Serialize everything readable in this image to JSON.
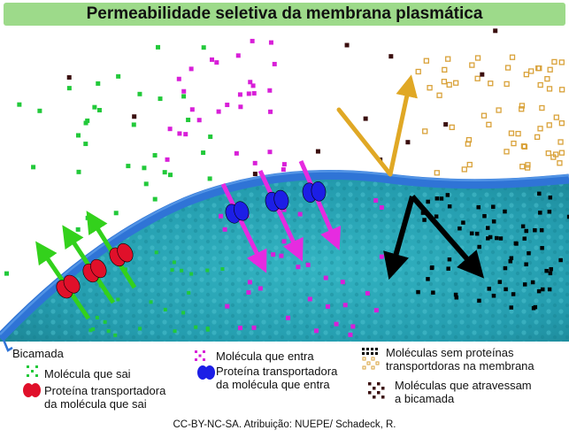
{
  "title": "Permeabilidade seletiva da membrana plasmática",
  "colors": {
    "title_bg": "#9dda8a",
    "membrane": "#2f74d6",
    "cell": "#2aa7b7",
    "outgoing_molecule": "#22c93a",
    "outgoing_protein": "#e0102a",
    "incoming_molecule": "#d81fd8",
    "incoming_protein": "#1c1ee6",
    "no_protein_molecule": "#d9a23a",
    "bilayer_molecule": "#3a0e0e",
    "arrow_out": "#33d11c",
    "arrow_in": "#e62be0",
    "arrow_reflect": "#e0a825",
    "arrow_black": "#000000"
  },
  "legend": {
    "bilayer": "Bicamada",
    "outgoing_molecule": "Molécula que sai",
    "outgoing_protein_line1": "Proteína transportadora",
    "outgoing_protein_line2": "da molécula que sai",
    "incoming_molecule": "Molécula que entra",
    "incoming_protein_line1": "Proteína transportadora",
    "incoming_protein_line2": "da molécula que entra",
    "no_protein_line1": "Moléculas sem proteínas",
    "no_protein_line2": "transportdoras na membrana",
    "bilayer_molecules_line1": "Moléculas que atravessam",
    "bilayer_molecules_line2": "a bicamada"
  },
  "credit": "CC-BY-NC-SA. Atribuição: NUEPE/ Schadeck, R."
}
